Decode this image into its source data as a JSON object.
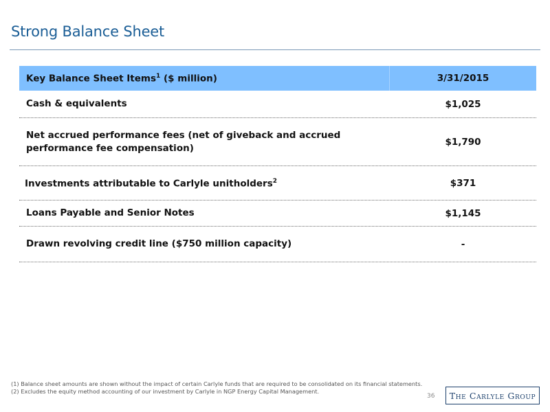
{
  "slide": {
    "title": "Strong Balance Sheet",
    "page_number": "36"
  },
  "table": {
    "header": {
      "label": "Key Balance Sheet Items",
      "label_sup": "1",
      "label_suffix": " ($ million)",
      "date": "3/31/2015"
    },
    "rows": [
      {
        "label": "Cash & equivalents",
        "sup": "",
        "value": "$1,025"
      },
      {
        "label": "Net accrued performance fees (net of giveback and accrued performance fee compensation)",
        "sup": "",
        "value": "$1,790"
      },
      {
        "label": "Investments attributable to Carlyle unitholders",
        "sup": "2",
        "value": "$371"
      },
      {
        "label": "Loans Payable and Senior Notes",
        "sup": "",
        "value": "$1,145"
      },
      {
        "label": "Drawn revolving credit line ($750 million capacity)",
        "sup": "",
        "value": "-"
      }
    ]
  },
  "footnotes": [
    "(1) Balance sheet amounts are shown without the impact of certain Carlyle funds that are required to be consolidated on its financial statements.",
    "(2) Excludes the equity method accounting of our investment by Carlyle in NGP Energy Capital Management."
  ],
  "logo": {
    "text": "The Carlyle Group"
  }
}
